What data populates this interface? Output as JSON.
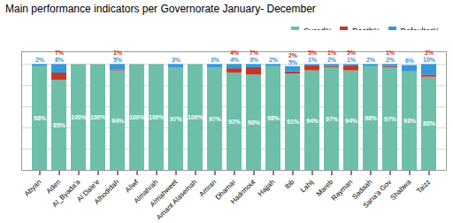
{
  "chart_data": {
    "type": "bar",
    "stacked": true,
    "title": "Main performance indicators per Governorate January- December",
    "categories": [
      "Abyan",
      "Aden",
      "Al_Byada'a",
      "Al Dale'e",
      "Alhodidah",
      "Aliwf",
      "Almahrah",
      "Almahweet",
      "Amant Alasemah",
      "Amran",
      "Dhamar",
      "Hadrmout",
      "Hajjah",
      "Ibb",
      "Lahij",
      "Mareb",
      "Rayman",
      "Sadaah",
      "Sana'a Gov",
      "Shabwa",
      "Taizz"
    ],
    "series": [
      {
        "name": "Cured%",
        "color": "#6dbfaa",
        "values": [
          98,
          85,
          100,
          100,
          94,
          100,
          100,
          97,
          100,
          97,
          92,
          90,
          98,
          91,
          94,
          97,
          94,
          98,
          97,
          93,
          88
        ],
        "value_labels": [
          "98%",
          "85%",
          "100%",
          "100%",
          "94%",
          "100%",
          "100%",
          "97%",
          "100%",
          "97%",
          "92%",
          "90%",
          "98%",
          "91%",
          "94%",
          "97%",
          "94%",
          "98%",
          "97%",
          "93%",
          "88%"
        ]
      },
      {
        "name": "Death%",
        "color": "#c0392b",
        "values": [
          0,
          7,
          0,
          0,
          1,
          0,
          0,
          0,
          0,
          0,
          4,
          7,
          0,
          2,
          5,
          1,
          5,
          0,
          1,
          0,
          2
        ],
        "value_labels": [
          null,
          "7%",
          null,
          null,
          "1%",
          null,
          null,
          null,
          null,
          null,
          "4%",
          "7%",
          null,
          "2%",
          "5%",
          "1%",
          "5%",
          null,
          "1%",
          null,
          "2%"
        ]
      },
      {
        "name": "Defaulter%",
        "color": "#3498db",
        "values": [
          2,
          8,
          0,
          0,
          5,
          0,
          0,
          3,
          0,
          3,
          4,
          3,
          2,
          5,
          1,
          2,
          1,
          2,
          2,
          6,
          10
        ],
        "value_labels": [
          "2%",
          "8%",
          null,
          null,
          "5%",
          null,
          null,
          "3%",
          null,
          "3%",
          "4%",
          "3%",
          "2%",
          "5%",
          "1%",
          "2%",
          "1%",
          "2%",
          "2%",
          "6%",
          "10%"
        ]
      }
    ],
    "ylim": [
      0,
      112
    ],
    "yticks": [
      20,
      40,
      60,
      80,
      100
    ],
    "grid": true,
    "tick_labels": "x",
    "data_labels": true,
    "legend": "upper right"
  }
}
